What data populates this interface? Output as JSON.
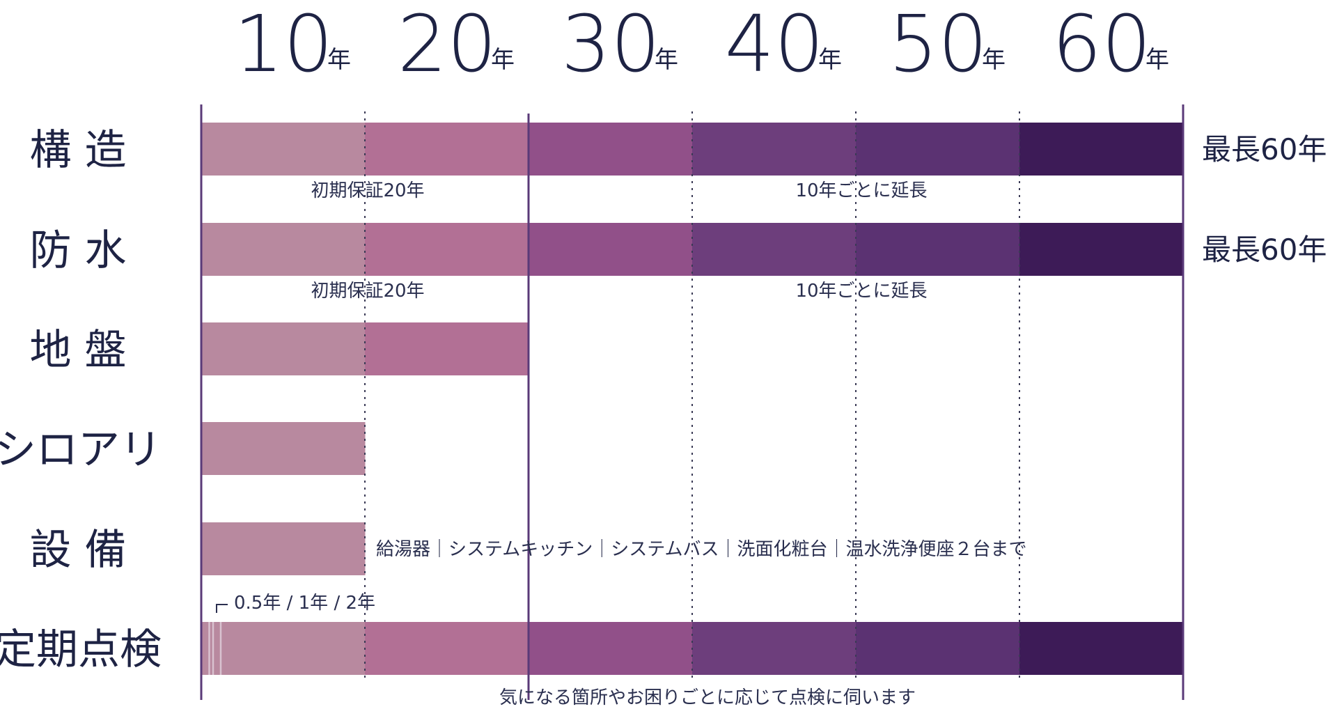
{
  "chart_data": {
    "type": "bar",
    "title": "",
    "x_axis": {
      "unit": "年",
      "ticks": [
        10,
        20,
        30,
        40,
        50,
        60
      ],
      "range": [
        0,
        60
      ]
    },
    "segment_colors": [
      "#b8899f",
      "#b27095",
      "#915089",
      "#6d3e7c",
      "#5b3272",
      "#3d1b57"
    ],
    "categories": [
      {
        "label": "構 造",
        "start": 0,
        "end": 60,
        "note_left": "初期保証20年",
        "note_right": "10年ごとに延長",
        "max_label": "最長60年"
      },
      {
        "label": "防 水",
        "start": 0,
        "end": 60,
        "note_left": "初期保証20年",
        "note_right": "10年ごとに延長",
        "max_label": "最長60年"
      },
      {
        "label": "地 盤",
        "start": 0,
        "end": 20
      },
      {
        "label": "シロアリ",
        "start": 0,
        "end": 10
      },
      {
        "label": "設 備",
        "start": 0,
        "end": 10,
        "note_inline": "給湯器｜システムキッチン｜システムバス｜洗面化粧台｜温水洗浄便座２台まで"
      },
      {
        "label": "定期点検",
        "start": 0,
        "end": 60,
        "note_top": "0.5年 / 1年 / 2年",
        "inspection_marks": [
          0.5,
          1,
          2
        ],
        "note_bottom": "気になる箇所やお困りごとに応じて点検に伺います"
      }
    ]
  }
}
